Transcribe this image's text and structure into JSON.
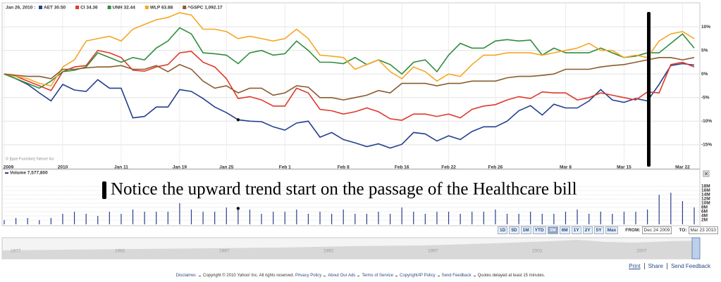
{
  "chart_data": [
    {
      "type": "line",
      "header": "Jan 26, 2010 :",
      "categories": [
        "2009",
        null,
        null,
        null,
        null,
        "2010",
        null,
        null,
        null,
        null,
        "Jan 11",
        null,
        null,
        null,
        null,
        "Jan 19",
        null,
        null,
        null,
        "Jan 25",
        null,
        null,
        null,
        null,
        "Feb 1",
        null,
        null,
        null,
        null,
        "Feb 8",
        null,
        null,
        null,
        null,
        "Feb 16",
        null,
        null,
        null,
        "Feb 22",
        null,
        null,
        null,
        "Feb 26",
        null,
        null,
        null,
        null,
        null,
        "Mar 8",
        null,
        null,
        null,
        null,
        "Mar 15",
        null,
        null,
        null,
        null,
        "Mar 22",
        null
      ],
      "series": [
        {
          "name": "AET 30.50",
          "color": "#243f8e",
          "values": [
            0,
            -1.0,
            -2.2,
            -4.0,
            -5.7,
            -2.2,
            -3.4,
            -3.7,
            -1.2,
            -3.0,
            -3.0,
            -9.3,
            -9.0,
            -7.0,
            -7.0,
            -3.3,
            -3.7,
            -5.2,
            -7.0,
            -8.2,
            -9.7,
            -10.0,
            -10.1,
            -11.2,
            -11.9,
            -10.4,
            -10.0,
            -13.4,
            -12.4,
            -13.9,
            -14.6,
            -15.4,
            -14.8,
            -15.7,
            -14.9,
            -12.4,
            -12.7,
            -14.2,
            -13.1,
            -13.9,
            -12.2,
            -11.2,
            -11.2,
            -10.0,
            -7.8,
            -6.7,
            -8.7,
            -6.4,
            -7.2,
            -7.2,
            -5.7,
            -3.3,
            -5.5,
            -6.0,
            -5.2,
            -5.7,
            -2.2,
            1.8,
            2.2,
            1.9
          ]
        },
        {
          "name": "CI 34.36",
          "color": "#e0392a",
          "values": [
            0,
            -0.5,
            -1.5,
            -2.5,
            -3.5,
            0.5,
            1.5,
            1.8,
            5.0,
            4.5,
            3.5,
            0.8,
            0.6,
            1.5,
            2.0,
            4.5,
            4.8,
            2.5,
            1.5,
            -1.0,
            -5.2,
            -4.8,
            -5.5,
            -6.8,
            -6.8,
            -3.0,
            -4.0,
            -7.5,
            -7.8,
            -8.5,
            -8.0,
            -7.2,
            -8.0,
            -9.5,
            -9.8,
            -8.5,
            -8.5,
            -9.0,
            -8.5,
            -9.3,
            -7.5,
            -6.8,
            -6.5,
            -5.5,
            -4.8,
            -5.2,
            -3.8,
            -4.0,
            -4.0,
            -5.5,
            -5.0,
            -4.0,
            -4.5,
            -5.0,
            -5.5,
            -3.8,
            -4.0,
            2.0,
            2.5,
            1.5
          ]
        },
        {
          "name": "UNH 32.44",
          "color": "#2f8d3b",
          "values": [
            0,
            -1.0,
            -2.0,
            -3.0,
            -1.5,
            0.5,
            0.8,
            1.5,
            4.5,
            3.5,
            2.5,
            3.5,
            3.0,
            5.5,
            7.0,
            9.8,
            8.5,
            4.5,
            4.3,
            4.0,
            2.2,
            4.5,
            5.0,
            4.0,
            4.3,
            7.0,
            5.0,
            2.5,
            2.5,
            2.2,
            3.5,
            2.0,
            3.0,
            2.0,
            0.0,
            2.5,
            3.0,
            0.5,
            4.0,
            6.5,
            5.5,
            5.5,
            7.0,
            7.3,
            7.0,
            7.2,
            4.0,
            5.5,
            4.5,
            4.5,
            4.5,
            5.5,
            4.5,
            3.5,
            3.8,
            4.5,
            4.5,
            6.5,
            8.5,
            5.5
          ]
        },
        {
          "name": "WLP 63.88",
          "color": "#f5a623",
          "values": [
            0,
            -0.5,
            -1.0,
            -2.0,
            -2.5,
            1.5,
            3.0,
            7.0,
            7.5,
            8.0,
            7.0,
            9.5,
            10.5,
            11.5,
            12.0,
            13.0,
            12.5,
            9.5,
            9.5,
            9.0,
            7.5,
            8.0,
            7.5,
            7.0,
            7.5,
            9.5,
            7.5,
            4.0,
            3.8,
            3.5,
            1.0,
            2.0,
            3.0,
            0.5,
            -1.0,
            1.5,
            0.5,
            -1.5,
            0.0,
            -0.5,
            2.0,
            4.0,
            4.0,
            4.5,
            4.5,
            4.5,
            4.0,
            4.5,
            5.0,
            5.5,
            6.5,
            5.0,
            5.0,
            3.5,
            4.0,
            3.5,
            7.0,
            8.5,
            9.0,
            7.5
          ]
        },
        {
          "name": "^GSPC 1,092.17",
          "color": "#8b5a2b",
          "values": [
            0,
            -0.3,
            -0.5,
            -0.5,
            -1.0,
            1.0,
            1.0,
            1.3,
            1.5,
            1.5,
            1.8,
            1.0,
            1.0,
            1.8,
            0.5,
            2.0,
            1.0,
            -1.5,
            -3.0,
            -2.5,
            -4.0,
            -3.0,
            -3.0,
            -4.5,
            -4.0,
            -2.5,
            -2.8,
            -5.0,
            -5.0,
            -5.5,
            -5.0,
            -4.5,
            -3.5,
            -4.0,
            -2.0,
            -2.0,
            -2.0,
            -2.5,
            -2.0,
            -2.0,
            -1.5,
            -1.5,
            -1.5,
            -0.8,
            -0.5,
            -0.5,
            -0.3,
            0.0,
            1.0,
            1.0,
            1.0,
            1.5,
            1.8,
            2.0,
            2.5,
            3.0,
            3.5,
            3.5,
            3.0,
            3.5
          ]
        }
      ],
      "ylim": [
        -19.5,
        14.5
      ],
      "yticks": [
        {
          "value": -15,
          "label": "-15%"
        },
        {
          "value": -10,
          "label": "-10%"
        },
        {
          "value": -5,
          "label": "-5%"
        },
        {
          "value": 0,
          "label": "0%"
        },
        {
          "value": 5,
          "label": "5%"
        },
        {
          "value": 10,
          "label": "10%"
        }
      ],
      "grid": true,
      "marker": 20,
      "credit": "© [type Function] Yahoo! Inc",
      "annotation": "Notice the upward trend start on the passage of the Healthcare bill"
    },
    {
      "type": "bar",
      "series": [
        {
          "name": "Volume 7,577,800",
          "color": "#2b3f8e",
          "values": [
            2,
            3,
            3,
            2,
            3,
            5,
            6,
            5,
            4,
            6,
            5,
            7,
            6,
            6,
            6,
            10,
            7,
            6,
            6,
            8,
            7.5778,
            7,
            5,
            6,
            6,
            7,
            5,
            6,
            5,
            7,
            5,
            5,
            6,
            5,
            8,
            6,
            5,
            6,
            6,
            5,
            6,
            6,
            7,
            5,
            5,
            6,
            5,
            5,
            6,
            7,
            5,
            6,
            5,
            6,
            6,
            7,
            14,
            15,
            11,
            8
          ]
        }
      ],
      "ylim": [
        0,
        20
      ],
      "yticks": [
        {
          "value": 2,
          "label": "2M"
        },
        {
          "value": 4,
          "label": "4M"
        },
        {
          "value": 6,
          "label": "6M"
        },
        {
          "value": 8,
          "label": "8M"
        },
        {
          "value": 10,
          "label": "10M"
        },
        {
          "value": 12,
          "label": "12M"
        },
        {
          "value": 14,
          "label": "14M"
        },
        {
          "value": 16,
          "label": "16M"
        },
        {
          "value": 18,
          "label": "18M"
        }
      ],
      "grid": true,
      "marker": 20
    }
  ],
  "controls": {
    "ranges": [
      "1D",
      "5D",
      "1M",
      "YTD",
      "3M",
      "6M",
      "1Y",
      "2Y",
      "5Y",
      "Max"
    ],
    "active": "3M",
    "from_label": "FROM:",
    "from": "Dec 24 2009",
    "to_label": "TO:",
    "to": "Mar 23 2010"
  },
  "navigator": {
    "years": [
      "1977",
      "1982",
      "1987",
      "1992",
      "1997",
      "2002",
      "2007"
    ]
  },
  "links": [
    "Print",
    "Share",
    "Send Feedback"
  ],
  "footer": [
    "Disclaimer.",
    "Copyright © 2010 Yahoo! Inc. All rights reserved.",
    "Privacy Policy",
    "About Our Ads",
    "Terms of Service",
    "Copyright/IP Policy",
    "Send Feedback",
    "Quotes delayed at least 15 minutes."
  ]
}
